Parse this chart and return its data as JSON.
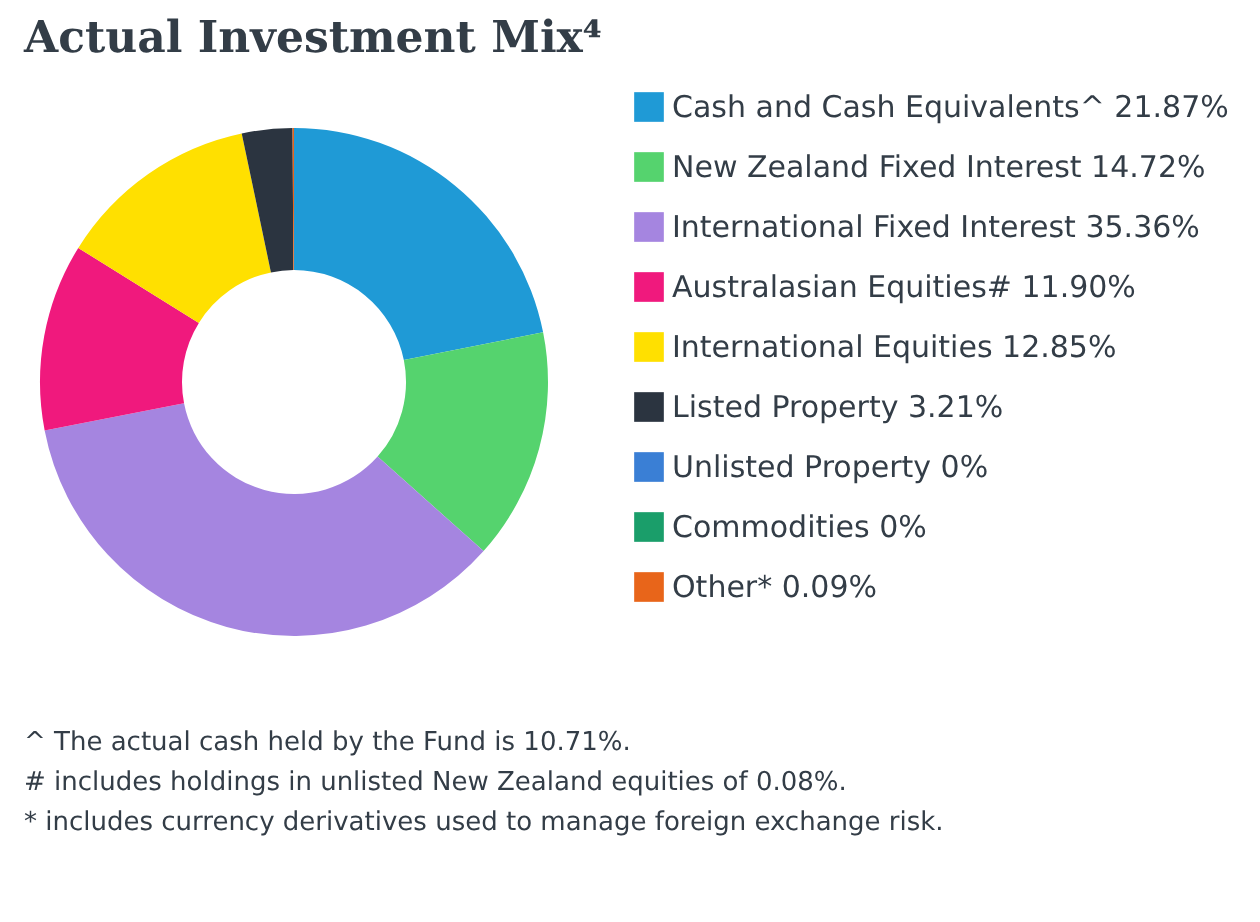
{
  "chart_data": {
    "type": "donut",
    "title": "Actual Investment Mix⁴",
    "categories": [
      "Cash and Cash Equivalents^",
      "New Zealand Fixed Interest",
      "International Fixed Interest",
      "Australasian Equities#",
      "International Equities",
      "Listed Property",
      "Unlisted Property",
      "Commodities",
      "Other*"
    ],
    "values": [
      21.87,
      14.72,
      35.36,
      11.9,
      12.85,
      3.21,
      0,
      0,
      0.09
    ],
    "value_labels": [
      "21.87%",
      "14.72%",
      "35.36%",
      "11.90%",
      "12.85%",
      "3.21%",
      "0%",
      "0%",
      "0.09%"
    ],
    "colors": [
      "#1f9ad6",
      "#55d36e",
      "#a585e0",
      "#f0197d",
      "#ffe000",
      "#2b3440",
      "#3a7fd5",
      "#1a9e6a",
      "#e8651a"
    ],
    "legend": "right",
    "annotations": [
      "^ The actual cash held by the Fund is 10.71%.",
      "# includes holdings in unlisted New Zealand equities of 0.08%.",
      "* includes currency derivatives used to manage foreign exchange risk."
    ]
  }
}
